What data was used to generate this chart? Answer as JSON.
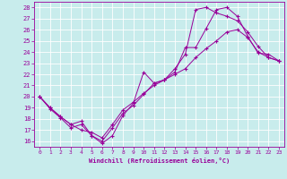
{
  "xlabel": "Windchill (Refroidissement éolien,°C)",
  "ylabel": "",
  "xlim": [
    -0.5,
    23.5
  ],
  "ylim": [
    15.5,
    28.5
  ],
  "xticks": [
    0,
    1,
    2,
    3,
    4,
    5,
    6,
    7,
    8,
    9,
    10,
    11,
    12,
    13,
    14,
    15,
    16,
    17,
    18,
    19,
    20,
    21,
    22,
    23
  ],
  "yticks": [
    16,
    17,
    18,
    19,
    20,
    21,
    22,
    23,
    24,
    25,
    26,
    27,
    28
  ],
  "bg_color": "#c8ecec",
  "grid_color": "#ffffff",
  "line_color": "#990099",
  "line1_x": [
    0,
    1,
    2,
    3,
    4,
    5,
    6,
    7,
    8,
    9,
    10,
    11,
    12,
    13,
    14,
    15,
    16,
    17,
    18,
    19,
    20,
    21,
    22,
    23
  ],
  "line1_y": [
    20.0,
    18.9,
    18.1,
    17.2,
    17.5,
    16.5,
    15.8,
    16.5,
    18.3,
    19.4,
    22.2,
    21.2,
    21.5,
    22.2,
    24.4,
    24.4,
    26.1,
    27.8,
    28.0,
    27.2,
    25.4,
    23.9,
    23.8,
    23.2
  ],
  "line2_x": [
    0,
    1,
    2,
    3,
    4,
    5,
    6,
    7,
    8,
    9,
    10,
    11,
    12,
    13,
    14,
    15,
    16,
    17,
    18,
    19,
    20,
    21,
    22,
    23
  ],
  "line2_y": [
    20.0,
    19.0,
    18.2,
    17.5,
    17.0,
    16.8,
    16.3,
    17.5,
    18.8,
    19.5,
    20.3,
    21.0,
    21.5,
    22.0,
    22.5,
    23.5,
    24.3,
    25.0,
    25.8,
    26.0,
    25.3,
    24.0,
    23.5,
    23.2
  ],
  "line3_x": [
    0,
    1,
    2,
    3,
    4,
    5,
    6,
    7,
    8,
    9,
    10,
    11,
    12,
    13,
    14,
    15,
    16,
    17,
    18,
    19,
    20,
    21,
    22,
    23
  ],
  "line3_y": [
    20.0,
    19.0,
    18.2,
    17.5,
    17.8,
    16.5,
    16.0,
    17.2,
    18.5,
    19.2,
    20.2,
    21.2,
    21.5,
    22.5,
    23.8,
    27.8,
    28.0,
    27.5,
    27.2,
    26.8,
    25.8,
    24.5,
    23.5,
    23.2
  ]
}
